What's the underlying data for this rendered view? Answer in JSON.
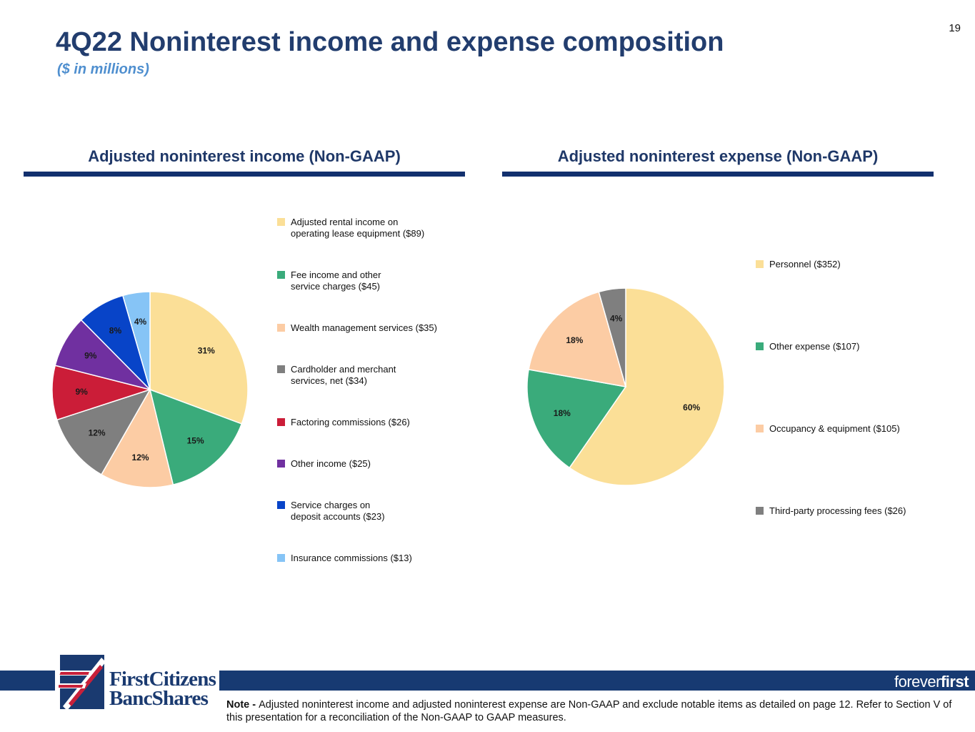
{
  "page_number": "19",
  "title": "4Q22 Noninterest income and expense composition",
  "subtitle": "($ in millions)",
  "colors": {
    "title": "#223d6e",
    "subtitle": "#4f8fcf",
    "rule": "#12306e",
    "band": "#173a72"
  },
  "chart_data": [
    {
      "type": "pie",
      "title": "Adjusted noninterest income (Non-GAAP)",
      "start": "12 o'clock, clockwise",
      "slices": [
        {
          "label": "Adjusted rental income on\noperating lease equipment ($89)",
          "value": 89,
          "pct_label": "31%",
          "color": "#fbdf97"
        },
        {
          "label": "Fee income and other\nservice charges ($45)",
          "value": 45,
          "pct_label": "15%",
          "color": "#3aab7b"
        },
        {
          "label": "Wealth management services ($35)",
          "value": 35,
          "pct_label": "12%",
          "color": "#fccca4"
        },
        {
          "label": "Cardholder and merchant\nservices, net ($34)",
          "value": 34,
          "pct_label": "12%",
          "color": "#7f7f7f"
        },
        {
          "label": "Factoring commissions ($26)",
          "value": 26,
          "pct_label": "9%",
          "color": "#cb1d38"
        },
        {
          "label": "Other income ($25)",
          "value": 25,
          "pct_label": "9%",
          "color": "#7030a0"
        },
        {
          "label": "Service charges on\ndeposit accounts ($23)",
          "value": 23,
          "pct_label": "8%",
          "color": "#0844c8"
        },
        {
          "label": "Insurance commissions ($13)",
          "value": 13,
          "pct_label": "4%",
          "color": "#86c4f6"
        }
      ]
    },
    {
      "type": "pie",
      "title": "Adjusted noninterest expense (Non-GAAP)",
      "start": "12 o'clock, clockwise",
      "slices": [
        {
          "label": "Personnel ($352)",
          "value": 352,
          "pct_label": "60%",
          "color": "#fbdf97"
        },
        {
          "label": "Other expense ($107)",
          "value": 107,
          "pct_label": "18%",
          "color": "#3aab7b"
        },
        {
          "label": "Occupancy & equipment ($105)",
          "value": 105,
          "pct_label": "18%",
          "color": "#fccca4"
        },
        {
          "label": "Third-party processing fees ($26)",
          "value": 26,
          "pct_label": "4%",
          "color": "#7f7f7f"
        }
      ]
    }
  ],
  "logo": {
    "line1": "FirstCitizens",
    "line2": "BancShares"
  },
  "tagline": {
    "part1": "forever",
    "part2": "first"
  },
  "note": {
    "prefix": "Note - ",
    "text": "Adjusted noninterest income and adjusted noninterest expense are Non-GAAP and exclude notable items as detailed on page 12.  Refer to Section V of this presentation for a reconciliation of the Non-GAAP to GAAP measures."
  }
}
